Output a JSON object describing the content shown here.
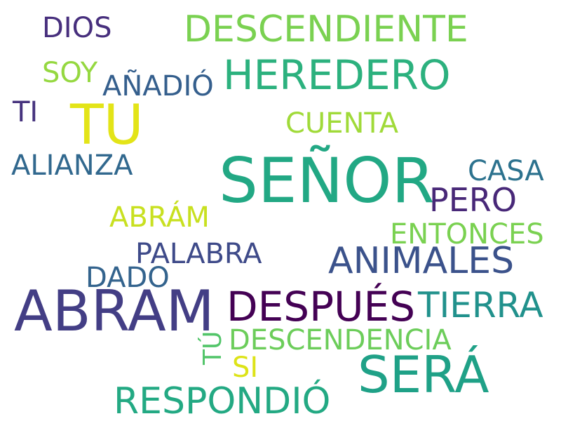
{
  "word_cloud": {
    "words": [
      {
        "text": "SEÑOR",
        "color": "#22a884"
      },
      {
        "text": "ABRAM",
        "color": "#433e85"
      },
      {
        "text": "SERÁ",
        "color": "#1fa187"
      },
      {
        "text": "TU",
        "color": "#e3e418"
      },
      {
        "text": "DESPUÉS",
        "color": "#440154"
      },
      {
        "text": "HEREDERO",
        "color": "#2cb17e"
      },
      {
        "text": "RESPONDIÓ",
        "color": "#23a983"
      },
      {
        "text": "ANIMALES",
        "color": "#3b528b"
      },
      {
        "text": "TIERRA",
        "color": "#21918c"
      },
      {
        "text": "DESCENDIENTE",
        "color": "#7ad151"
      },
      {
        "text": "PERO",
        "color": "#482878"
      },
      {
        "text": "DESCENDENCIA",
        "color": "#6ccd5a"
      },
      {
        "text": "ENTONCES",
        "color": "#7ad151"
      },
      {
        "text": "ALIANZA",
        "color": "#31688e"
      },
      {
        "text": "CASA",
        "color": "#2c728e"
      },
      {
        "text": "ABRÁM",
        "color": "#c8e020"
      },
      {
        "text": "PALABRA",
        "color": "#3e4a89"
      },
      {
        "text": "CUENTA",
        "color": "#a0da39"
      },
      {
        "text": "AÑADIÓ",
        "color": "#355f8d"
      },
      {
        "text": "DADO",
        "color": "#33638d"
      },
      {
        "text": "DIOS",
        "color": "#472f7d"
      },
      {
        "text": "SOY",
        "color": "#95d840"
      },
      {
        "text": "TI",
        "color": "#46337e"
      },
      {
        "text": "TÚ",
        "color": "#52c569"
      },
      {
        "text": "SI",
        "color": "#dde318"
      }
    ]
  }
}
